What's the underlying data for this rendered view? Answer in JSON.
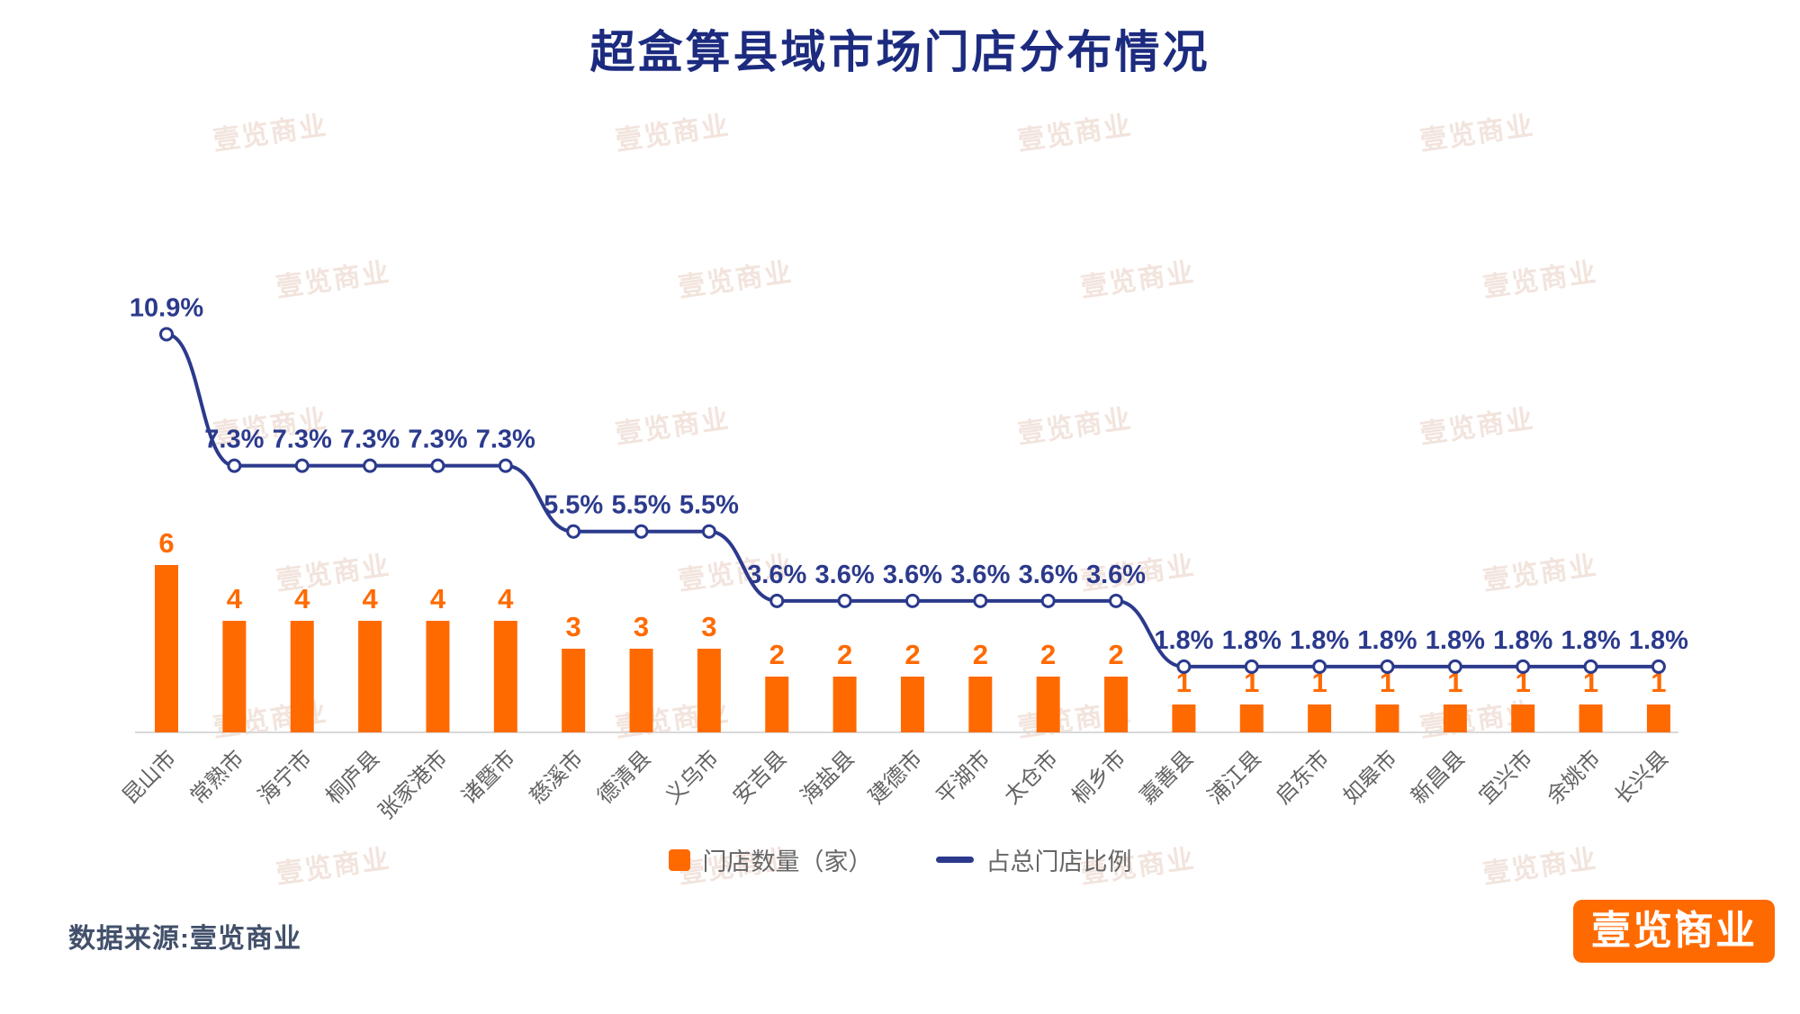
{
  "title": "超盒算县域市场门店分布情况",
  "watermark_text": "壹览商业",
  "source_note": "数据来源:壹览商业",
  "logo_text": "壹览商业",
  "legend": {
    "bar_label": "门店数量（家）",
    "line_label": "占总门店比例"
  },
  "colors": {
    "orange": "#ff6a00",
    "navy": "#2b3a8c",
    "title_navy": "#1c2b7f",
    "axis_gray": "#d9d9d9",
    "category_gray": "#636363"
  },
  "chart_data": {
    "type": "bar+line",
    "title": "超盒算县域市场门店分布情况",
    "categories": [
      "昆山市",
      "常熟市",
      "海宁市",
      "桐庐县",
      "张家港市",
      "诸暨市",
      "慈溪市",
      "德清县",
      "义乌市",
      "安吉县",
      "海盐县",
      "建德市",
      "平湖市",
      "太仓市",
      "桐乡市",
      "嘉善县",
      "浦江县",
      "启东市",
      "如皋市",
      "新昌县",
      "宜兴市",
      "余姚市",
      "长兴县"
    ],
    "series": [
      {
        "name": "门店数量（家）",
        "type": "bar",
        "values": [
          6,
          4,
          4,
          4,
          4,
          4,
          3,
          3,
          3,
          2,
          2,
          2,
          2,
          2,
          2,
          1,
          1,
          1,
          1,
          1,
          1,
          1,
          1
        ]
      },
      {
        "name": "占总门店比例",
        "type": "line",
        "unit": "%",
        "values": [
          10.9,
          7.3,
          7.3,
          7.3,
          7.3,
          7.3,
          5.5,
          5.5,
          5.5,
          3.6,
          3.6,
          3.6,
          3.6,
          3.6,
          3.6,
          1.8,
          1.8,
          1.8,
          1.8,
          1.8,
          1.8,
          1.8,
          1.8
        ]
      }
    ],
    "legend_position": "bottom",
    "grid": false,
    "bar_axis_visible": false,
    "pct_axis_visible": false
  }
}
